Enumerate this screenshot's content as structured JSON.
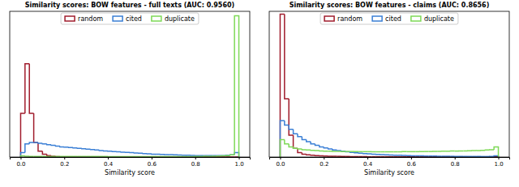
{
  "chart_data": [
    {
      "type": "histogram",
      "title": "Similarity scores: BOW features - full texts (AUC: 0.9560)",
      "x_label": "Similarity score",
      "bins": [
        0,
        0.02,
        0.04,
        0.06,
        0.08,
        0.1,
        0.12,
        0.14,
        0.16,
        0.18,
        0.2,
        0.22,
        0.24,
        0.26,
        0.28,
        0.3,
        0.32,
        0.34,
        0.36,
        0.38,
        0.4,
        0.42,
        0.44,
        0.46,
        0.48,
        0.5,
        0.52,
        0.54,
        0.56,
        0.58,
        0.6,
        0.62,
        0.64,
        0.66,
        0.68,
        0.7,
        0.72,
        0.74,
        0.76,
        0.78,
        0.8,
        0.82,
        0.84,
        0.86,
        0.88,
        0.9,
        0.92,
        0.94,
        0.96,
        0.98,
        1.0
      ],
      "series": [
        {
          "name": "random",
          "color": "#a01c2c",
          "values": [
            30,
            64,
            30,
            10,
            4,
            2,
            1,
            0.5,
            0.3,
            0.2,
            0.1,
            0.1,
            0,
            0,
            0,
            0,
            0,
            0,
            0,
            0,
            0,
            0,
            0,
            0,
            0,
            0,
            0,
            0,
            0,
            0,
            0,
            0,
            0,
            0,
            0,
            0,
            0,
            0,
            0,
            0,
            0,
            0,
            0,
            0,
            0,
            0,
            0,
            0,
            0,
            0
          ]
        },
        {
          "name": "cited",
          "color": "#3a7fd5",
          "values": [
            3,
            9,
            10,
            10,
            9.5,
            9,
            8.5,
            8,
            7.5,
            7,
            6.8,
            6.5,
            6.2,
            6,
            5.7,
            5.4,
            5.1,
            4.8,
            4.5,
            4.2,
            4,
            3.8,
            3.6,
            3.4,
            3.2,
            3,
            2.8,
            2.6,
            2.4,
            2.2,
            2,
            1.9,
            1.8,
            1.7,
            1.6,
            1.5,
            1.4,
            1.3,
            1.2,
            1.1,
            1,
            1,
            1,
            1,
            1,
            1,
            1,
            1.2,
            1.5,
            3
          ]
        },
        {
          "name": "duplicate",
          "color": "#7ed957",
          "values": [
            0.8,
            0.5,
            0.4,
            0.4,
            0.4,
            0.4,
            0.4,
            0.4,
            0.4,
            0.4,
            0.4,
            0.4,
            0.4,
            0.4,
            0.4,
            0.4,
            0.4,
            0.4,
            0.4,
            0.4,
            0.3,
            0.3,
            0.3,
            0.3,
            0.3,
            0.3,
            0.3,
            0.3,
            0.3,
            0.3,
            0.3,
            0.3,
            0.3,
            0.3,
            0.3,
            0.3,
            0.3,
            0.3,
            0.3,
            0.3,
            0.4,
            0.4,
            0.5,
            0.5,
            0.6,
            0.7,
            0.8,
            1,
            1.5,
            97
          ]
        }
      ],
      "xlim": [
        -0.05,
        1.05
      ],
      "xticks": [
        {
          "value": 0,
          "label": "0.0"
        },
        {
          "value": 0.2,
          "label": "0.2"
        },
        {
          "value": 0.4,
          "label": "0.4"
        },
        {
          "value": 0.6,
          "label": "0.6"
        },
        {
          "value": 0.8,
          "label": "0.8"
        },
        {
          "value": 1.0,
          "label": "1.0"
        }
      ],
      "ylim": [
        0,
        100
      ],
      "legend": "upper center",
      "tick_labels": "x"
    },
    {
      "type": "histogram",
      "title": "Similarity scores: BOW features - claims (AUC: 0.8656)",
      "x_label": "Similarity score",
      "bins": [
        0,
        0.02,
        0.04,
        0.06,
        0.08,
        0.1,
        0.12,
        0.14,
        0.16,
        0.18,
        0.2,
        0.22,
        0.24,
        0.26,
        0.28,
        0.3,
        0.32,
        0.34,
        0.36,
        0.38,
        0.4,
        0.42,
        0.44,
        0.46,
        0.48,
        0.5,
        0.52,
        0.54,
        0.56,
        0.58,
        0.6,
        0.62,
        0.64,
        0.66,
        0.68,
        0.7,
        0.72,
        0.74,
        0.76,
        0.78,
        0.8,
        0.82,
        0.84,
        0.86,
        0.88,
        0.9,
        0.92,
        0.94,
        0.96,
        0.98,
        1.0
      ],
      "series": [
        {
          "name": "random",
          "color": "#a01c2c",
          "values": [
            98,
            40,
            15,
            6,
            3,
            2,
            1.5,
            1.2,
            1,
            0.8,
            0.7,
            0.6,
            0.5,
            0.5,
            0.4,
            0.4,
            0.3,
            0.3,
            0.3,
            0.3,
            0.2,
            0.2,
            0.2,
            0.2,
            0.2,
            0.2,
            0.2,
            0.2,
            0.2,
            0.2,
            0.1,
            0.1,
            0.1,
            0.1,
            0.1,
            0.1,
            0.1,
            0.1,
            0.1,
            0.1,
            0.1,
            0.1,
            0.1,
            0.1,
            0.1,
            0.1,
            0.1,
            0.1,
            0.1,
            0.1
          ]
        },
        {
          "name": "cited",
          "color": "#3a7fd5",
          "values": [
            25,
            22,
            19,
            16,
            14,
            12,
            10.5,
            9,
            8,
            7,
            6.2,
            5.5,
            4.9,
            4.4,
            4,
            3.6,
            3.2,
            2.9,
            2.6,
            2.4,
            2.2,
            2,
            1.8,
            1.6,
            1.5,
            1.4,
            1.3,
            1.2,
            1.1,
            1,
            0.9,
            0.85,
            0.8,
            0.75,
            0.7,
            0.65,
            0.6,
            0.55,
            0.5,
            0.5,
            0.45,
            0.45,
            0.4,
            0.4,
            0.4,
            0.35,
            0.35,
            0.35,
            0.4,
            0.8
          ]
        },
        {
          "name": "duplicate",
          "color": "#7ed957",
          "values": [
            12,
            9,
            7,
            6,
            5.5,
            5,
            4.8,
            4.6,
            4.4,
            4.2,
            4,
            4,
            3.9,
            3.9,
            3.8,
            3.8,
            3.8,
            3.7,
            3.7,
            3.7,
            3.7,
            3.6,
            3.6,
            3.6,
            3.6,
            3.6,
            3.6,
            3.6,
            3.7,
            3.7,
            3.7,
            3.7,
            3.8,
            3.8,
            3.8,
            3.9,
            3.9,
            4,
            4,
            4.1,
            4.1,
            4.2,
            4.2,
            4.3,
            4.4,
            4.5,
            4.6,
            4.8,
            5,
            7
          ]
        }
      ],
      "xlim": [
        -0.05,
        1.05
      ],
      "xticks": [
        {
          "value": 0,
          "label": "0.0"
        },
        {
          "value": 0.2,
          "label": "0.2"
        },
        {
          "value": 0.4,
          "label": "0.4"
        },
        {
          "value": 0.6,
          "label": "0.6"
        },
        {
          "value": 0.8,
          "label": "0.8"
        },
        {
          "value": 1.0,
          "label": "1.0"
        }
      ],
      "ylim": [
        0,
        100
      ],
      "legend": "upper center",
      "tick_labels": "x"
    }
  ]
}
